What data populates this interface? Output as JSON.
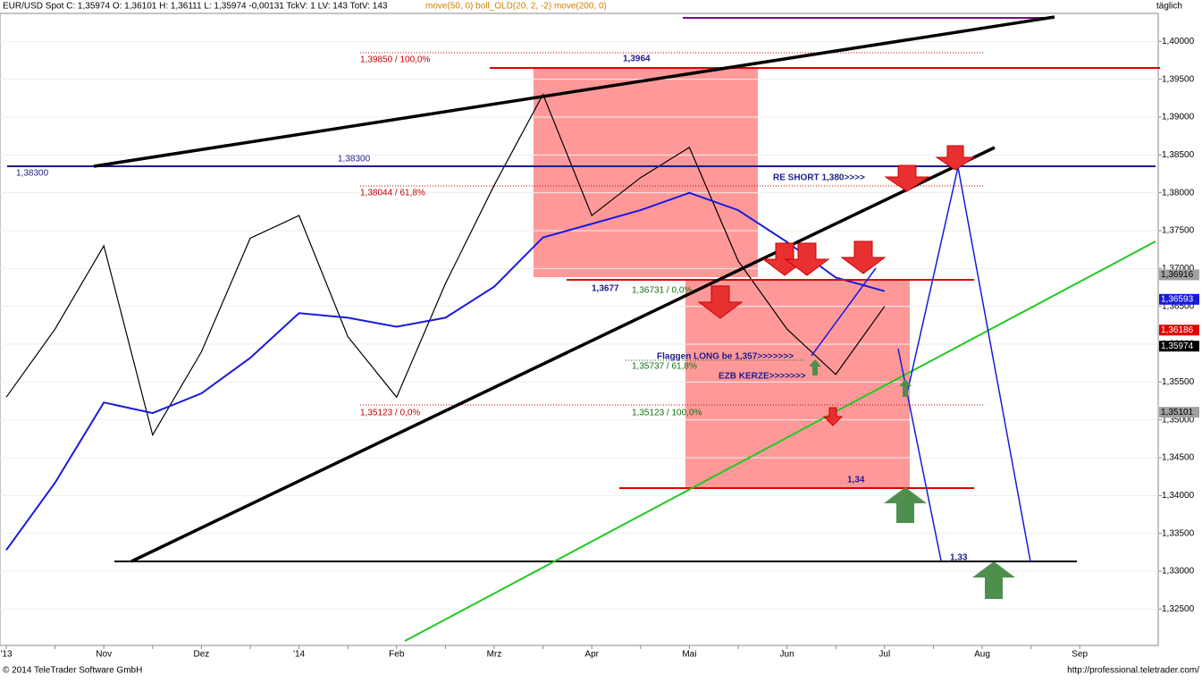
{
  "header": {
    "info": "EUR/USD Spot C: 1,35974 O: 1,36101 H: 1,36111 L: 1,35974 -0,00131 TckV: 1 LV: 143 TotV: 143",
    "indicators": "move(50, 0) boll_OLD(20, 2, -2) move(200, 0)",
    "period": "täglich"
  },
  "footer": {
    "copyright": "© 2014 TeleTrader Software GmbH",
    "url": "http://professional.teletrader.com/"
  },
  "chart_data": {
    "type": "line",
    "categories": [
      "'13",
      null,
      "Nov",
      null,
      "Dez",
      null,
      "'14",
      null,
      "Feb",
      null,
      "Mrz",
      null,
      "Apr",
      null,
      "Mai",
      null,
      "Jun",
      null,
      "Jul",
      null,
      "Aug",
      null,
      "Sep"
    ],
    "series": [
      {
        "name": "EUR/USD Spot",
        "color": "#000000",
        "values": [
          1.353,
          1.362,
          1.373,
          1.348,
          1.359,
          1.374,
          1.377,
          1.361,
          1.353,
          1.368,
          1.381,
          1.393,
          1.377,
          1.382,
          1.386,
          1.371,
          1.362,
          1.356,
          1.365,
          null,
          null,
          null,
          null
        ]
      },
      {
        "name": "move(50, 0)",
        "color": "#1a1adb",
        "values": [
          1.3328,
          1.3417,
          1.3523,
          1.3509,
          1.3535,
          1.3582,
          1.3641,
          1.3635,
          1.3623,
          1.3635,
          1.3676,
          1.3741,
          1.3759,
          1.3777,
          1.38,
          1.3777,
          1.3735,
          1.3688,
          1.367,
          null,
          null,
          null,
          null
        ]
      }
    ],
    "ylim": [
      1.3202,
      1.4037
    ],
    "yticks": [
      {
        "value": 1.325,
        "label": "1,32500"
      },
      {
        "value": 1.33,
        "label": "1,33000"
      },
      {
        "value": 1.335,
        "label": "1,33500"
      },
      {
        "value": 1.34,
        "label": "1,34000"
      },
      {
        "value": 1.345,
        "label": "1,34500"
      },
      {
        "value": 1.35,
        "label": "1,35000"
      },
      {
        "value": 1.355,
        "label": "1,35500"
      },
      {
        "value": 1.36,
        "label": "1,36000"
      },
      {
        "value": 1.365,
        "label": "1,36500"
      },
      {
        "value": 1.37,
        "label": "1,37000"
      },
      {
        "value": 1.375,
        "label": "1,37500"
      },
      {
        "value": 1.38,
        "label": "1,38000"
      },
      {
        "value": 1.385,
        "label": "1,38500"
      },
      {
        "value": 1.39,
        "label": "1,39000"
      },
      {
        "value": 1.395,
        "label": "1,39500"
      },
      {
        "value": 1.4,
        "label": "1,40000"
      }
    ],
    "price_markers": [
      {
        "value": 1.36916,
        "label": "1,36916",
        "color": "#a0a0a0"
      },
      {
        "value": 1.36593,
        "label": "1,36593",
        "color": "#1a1adb"
      },
      {
        "value": 1.36186,
        "label": "1,36186",
        "color": "#e00000"
      },
      {
        "value": 1.35974,
        "label": "1,35974",
        "color": "#000000"
      },
      {
        "value": 1.35101,
        "label": "1,35101",
        "color": "#a0a0a0"
      }
    ],
    "annotations": [
      "1,38300",
      "1,38300",
      "1,39850 / 100,0%",
      "1,3964",
      "1,38044 / 61,8%",
      "RE SHORT 1,380>>>>",
      "1,3677",
      "1,36731 / 0,0%",
      "Flaggen LONG be 1,357>>>>>>>",
      "1,35737 / 61,8%",
      "EZB KERZE>>>>>>>",
      "1,35123 / 0,0%",
      "1,35123 / 100,0%",
      "1,34",
      "1,33"
    ]
  }
}
